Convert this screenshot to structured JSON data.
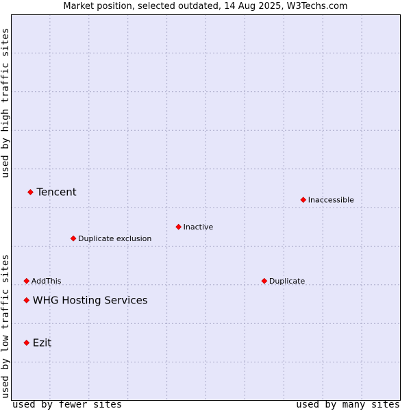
{
  "chart_data": {
    "type": "scatter",
    "title": "Market position, selected outdated, 14 Aug 2025, W3Techs.com",
    "xlabel_low": "used by fewer sites",
    "xlabel_high": "used by many sites",
    "ylabel_low": "used by low traffic sites",
    "ylabel_high": "used by high traffic sites",
    "xlim": [
      0,
      100
    ],
    "ylim": [
      0,
      100
    ],
    "grid": true,
    "points": [
      {
        "label": "Tencent",
        "x": 5,
        "y": 54,
        "emphasis": "large"
      },
      {
        "label": "Inaccessible",
        "x": 75,
        "y": 52,
        "emphasis": "small"
      },
      {
        "label": "Inactive",
        "x": 43,
        "y": 45,
        "emphasis": "small"
      },
      {
        "label": "Duplicate exclusion",
        "x": 16,
        "y": 42,
        "emphasis": "small"
      },
      {
        "label": "AddThis",
        "x": 4,
        "y": 31,
        "emphasis": "small"
      },
      {
        "label": "Duplicate",
        "x": 65,
        "y": 31,
        "emphasis": "small"
      },
      {
        "label": "WHG Hosting Services",
        "x": 4,
        "y": 26,
        "emphasis": "large"
      },
      {
        "label": "Ezit",
        "x": 4,
        "y": 15,
        "emphasis": "large"
      }
    ]
  },
  "colors": {
    "plot_bg": "#e6e6fa",
    "grid": "#a9a9c8",
    "marker": "#ff0000",
    "frame": "#000000"
  }
}
